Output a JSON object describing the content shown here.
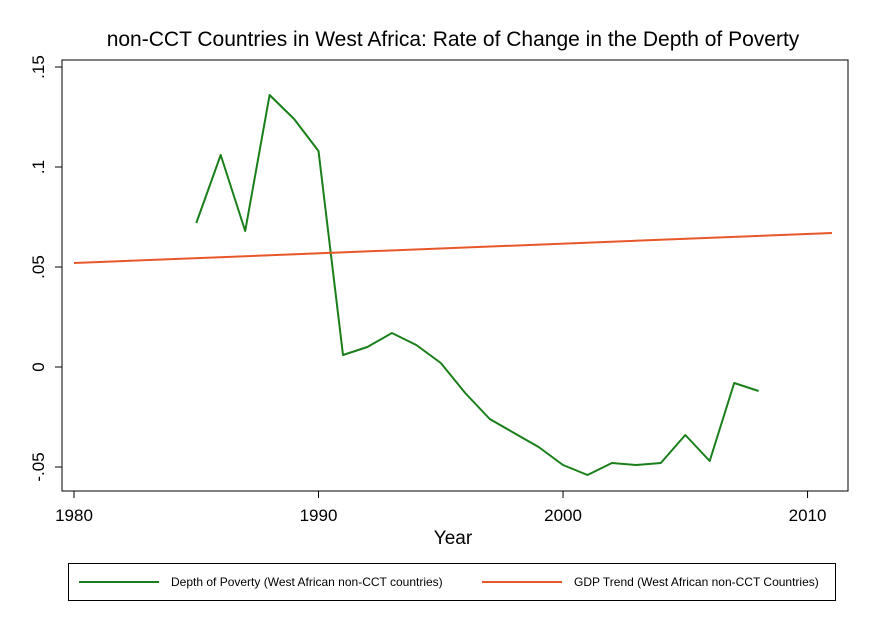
{
  "chart_data": {
    "type": "line",
    "title": "non-CCT Countries in West Africa: Rate of Change in the Depth of Poverty",
    "xlabel": "Year",
    "ylabel": "",
    "xlim": [
      1980,
      2011
    ],
    "ylim": [
      -0.05,
      0.15
    ],
    "x_ticks": [
      1980,
      1990,
      2000,
      2010
    ],
    "x_tick_labels": [
      "1980",
      "1990",
      "2000",
      "2010"
    ],
    "y_ticks": [
      -0.05,
      0,
      0.05,
      0.1,
      0.15
    ],
    "y_tick_labels": [
      "-.05",
      "0",
      ".05",
      ".1",
      ".15"
    ],
    "grid": false,
    "legend_position": "bottom",
    "series": [
      {
        "name": "Depth of Poverty (West African non-CCT countries)",
        "color": "#1a7f1a",
        "x": [
          1985,
          1986,
          1987,
          1988,
          1989,
          1990,
          1991,
          1992,
          1993,
          1994,
          1995,
          1996,
          1997,
          1998,
          1999,
          2000,
          2001,
          2002,
          2003,
          2004,
          2005,
          2006,
          2007,
          2008
        ],
        "y": [
          0.072,
          0.106,
          0.068,
          0.136,
          0.124,
          0.108,
          0.006,
          0.01,
          0.017,
          0.011,
          0.002,
          -0.013,
          -0.026,
          -0.033,
          -0.04,
          -0.049,
          -0.054,
          -0.048,
          -0.049,
          -0.048,
          -0.034,
          -0.047,
          -0.008,
          -0.012
        ]
      },
      {
        "name": "GDP Trend (West African non-CCT Countries)",
        "color": "#e8572a",
        "x": [
          1980,
          2011
        ],
        "y": [
          0.052,
          0.067
        ]
      }
    ]
  }
}
